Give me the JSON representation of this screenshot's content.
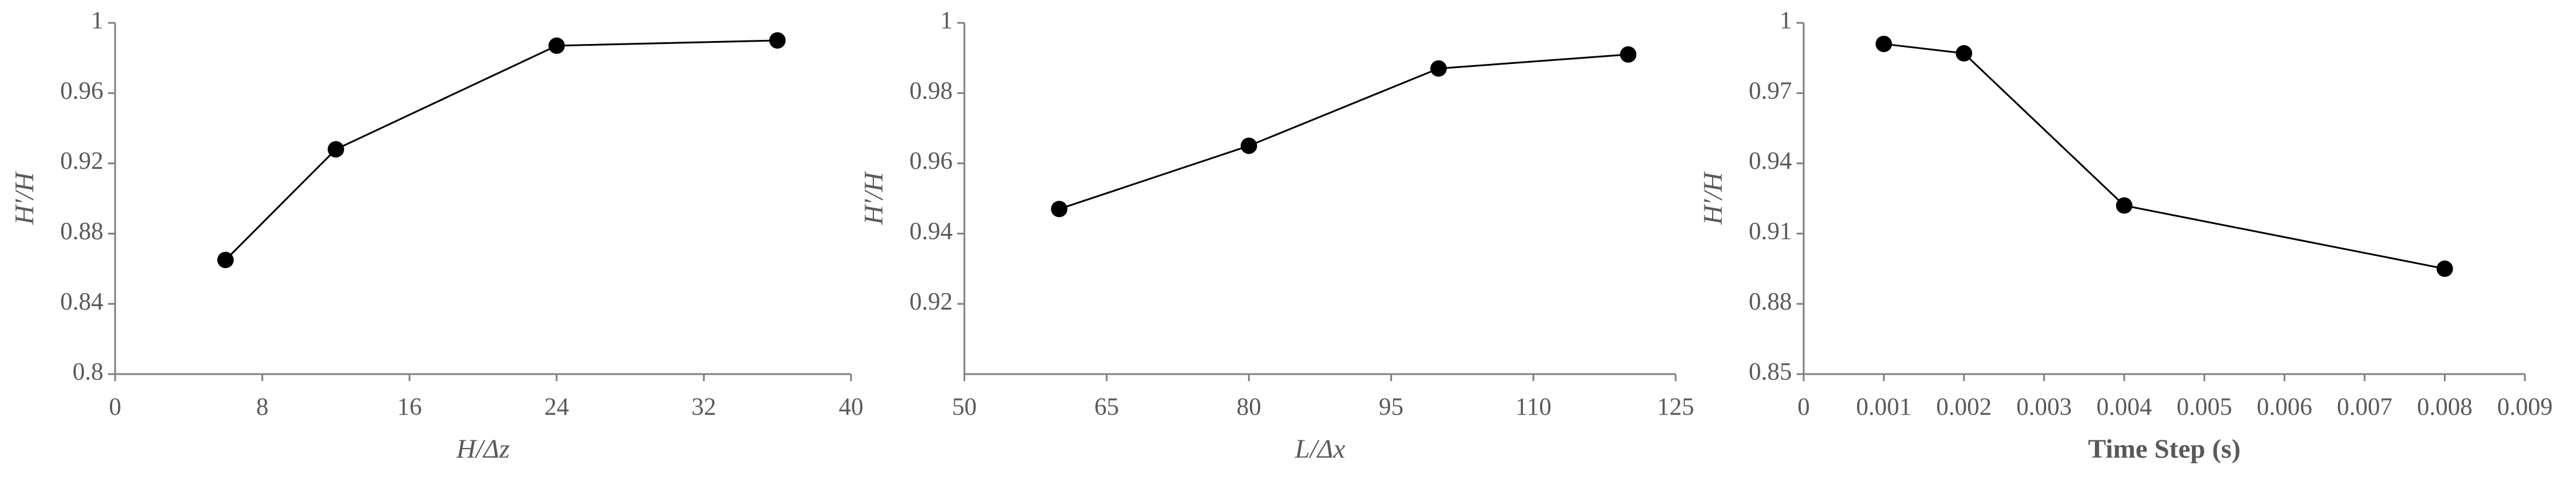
{
  "chart_data": [
    {
      "type": "line",
      "x_label": "H/Δz",
      "y_label": "H′/H",
      "color": "#000000",
      "x": [
        6,
        12,
        24,
        36
      ],
      "values": [
        0.865,
        0.928,
        0.987,
        0.99
      ],
      "xlim": [
        0,
        40
      ],
      "xticks": [
        0,
        8,
        16,
        24,
        32,
        40
      ],
      "ylim": [
        0.8,
        1
      ],
      "yticks": [
        0.8,
        0.84,
        0.88,
        0.92,
        0.96,
        1
      ]
    },
    {
      "type": "line",
      "x_label": "L/Δx",
      "y_label": "H′/H",
      "color": "#000000",
      "x": [
        60,
        80,
        100,
        120
      ],
      "values": [
        0.947,
        0.965,
        0.987,
        0.991
      ],
      "xlim": [
        50,
        125
      ],
      "xticks": [
        50,
        65,
        80,
        95,
        110,
        125
      ],
      "ylim": [
        0.9,
        1
      ],
      "yticks": [
        0.92,
        0.94,
        0.96,
        0.98,
        1
      ]
    },
    {
      "type": "line",
      "x_label": "Time Step (s)",
      "y_label": "H′/H",
      "color": "#000000",
      "x": [
        0.001,
        0.002,
        0.004,
        0.008
      ],
      "values": [
        0.991,
        0.987,
        0.922,
        0.895
      ],
      "xlim": [
        0,
        0.009
      ],
      "xticks": [
        0,
        0.001,
        0.002,
        0.003,
        0.004,
        0.005,
        0.006,
        0.007,
        0.008,
        0.009
      ],
      "ylim": [
        0.85,
        1
      ],
      "yticks": [
        0.85,
        0.88,
        0.91,
        0.94,
        0.97,
        1
      ]
    }
  ]
}
